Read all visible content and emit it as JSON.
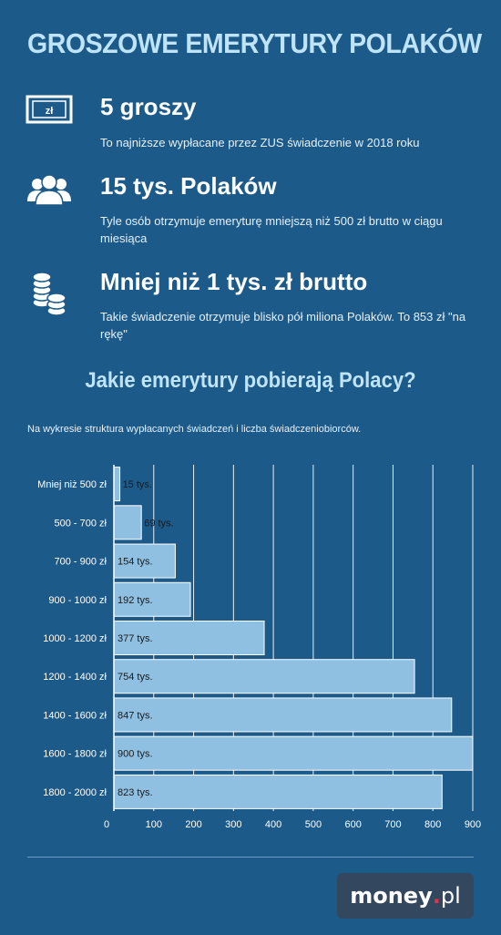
{
  "title": "GROSZOWE EMERYTURY POLAKÓW",
  "facts": [
    {
      "icon": "banknote-zl-icon",
      "icon_text": "zł",
      "headline": "5 groszy",
      "description": "To najniższe wypłacane przez ZUS świadczenie w 2018 roku"
    },
    {
      "icon": "people-group-icon",
      "headline": "15 tys. Polaków",
      "description": "Tyle osób otrzymuje emeryturę mniejszą niż 500 zł brutto w ciągu miesiąca"
    },
    {
      "icon": "coin-stacks-icon",
      "headline": "Mniej niż 1 tys. zł brutto",
      "description": "Takie świadczenie otrzymuje blisko pół miliona Polaków. To 853 zł \"na rękę\""
    }
  ],
  "section_title": "Jakie emerytury pobierają Polacy?",
  "chart_caption": "Na wykresie struktura wypłacanych świadczeń i liczba świadczeniobiorców.",
  "chart_data": {
    "type": "bar",
    "orientation": "horizontal",
    "categories": [
      "Mniej niż 500 zł",
      "500 - 700 zł",
      "700 - 900 zł",
      "900 - 1000 zł",
      "1000 - 1200 zł",
      "1200 - 1400 zł",
      "1400 - 1600 zł",
      "1600 - 1800 zł",
      "1800 - 2000 zł"
    ],
    "values": [
      15,
      69,
      154,
      192,
      377,
      754,
      847,
      900,
      823
    ],
    "data_labels": [
      "15 tys.",
      "69 tys.",
      "154 tys.",
      "192 tys.",
      "377 tys.",
      "754 tys.",
      "847 tys.",
      "900 tys.",
      "823 tys."
    ],
    "x_ticks": [
      0,
      100,
      200,
      300,
      400,
      500,
      600,
      700,
      800,
      900
    ],
    "xlim": [
      0,
      900
    ],
    "grid": true,
    "colors": {
      "bar": "#8fc0e2",
      "bar_border": "#ffffff",
      "grid": "#ffffff"
    }
  },
  "logo": {
    "brand": "money",
    "dot": ".",
    "suffix": "pl"
  },
  "colors": {
    "background": "#1c5a8a",
    "title": "#bfe3f7",
    "logo_bg": "#33475f",
    "logo_dot": "#e4304a"
  }
}
